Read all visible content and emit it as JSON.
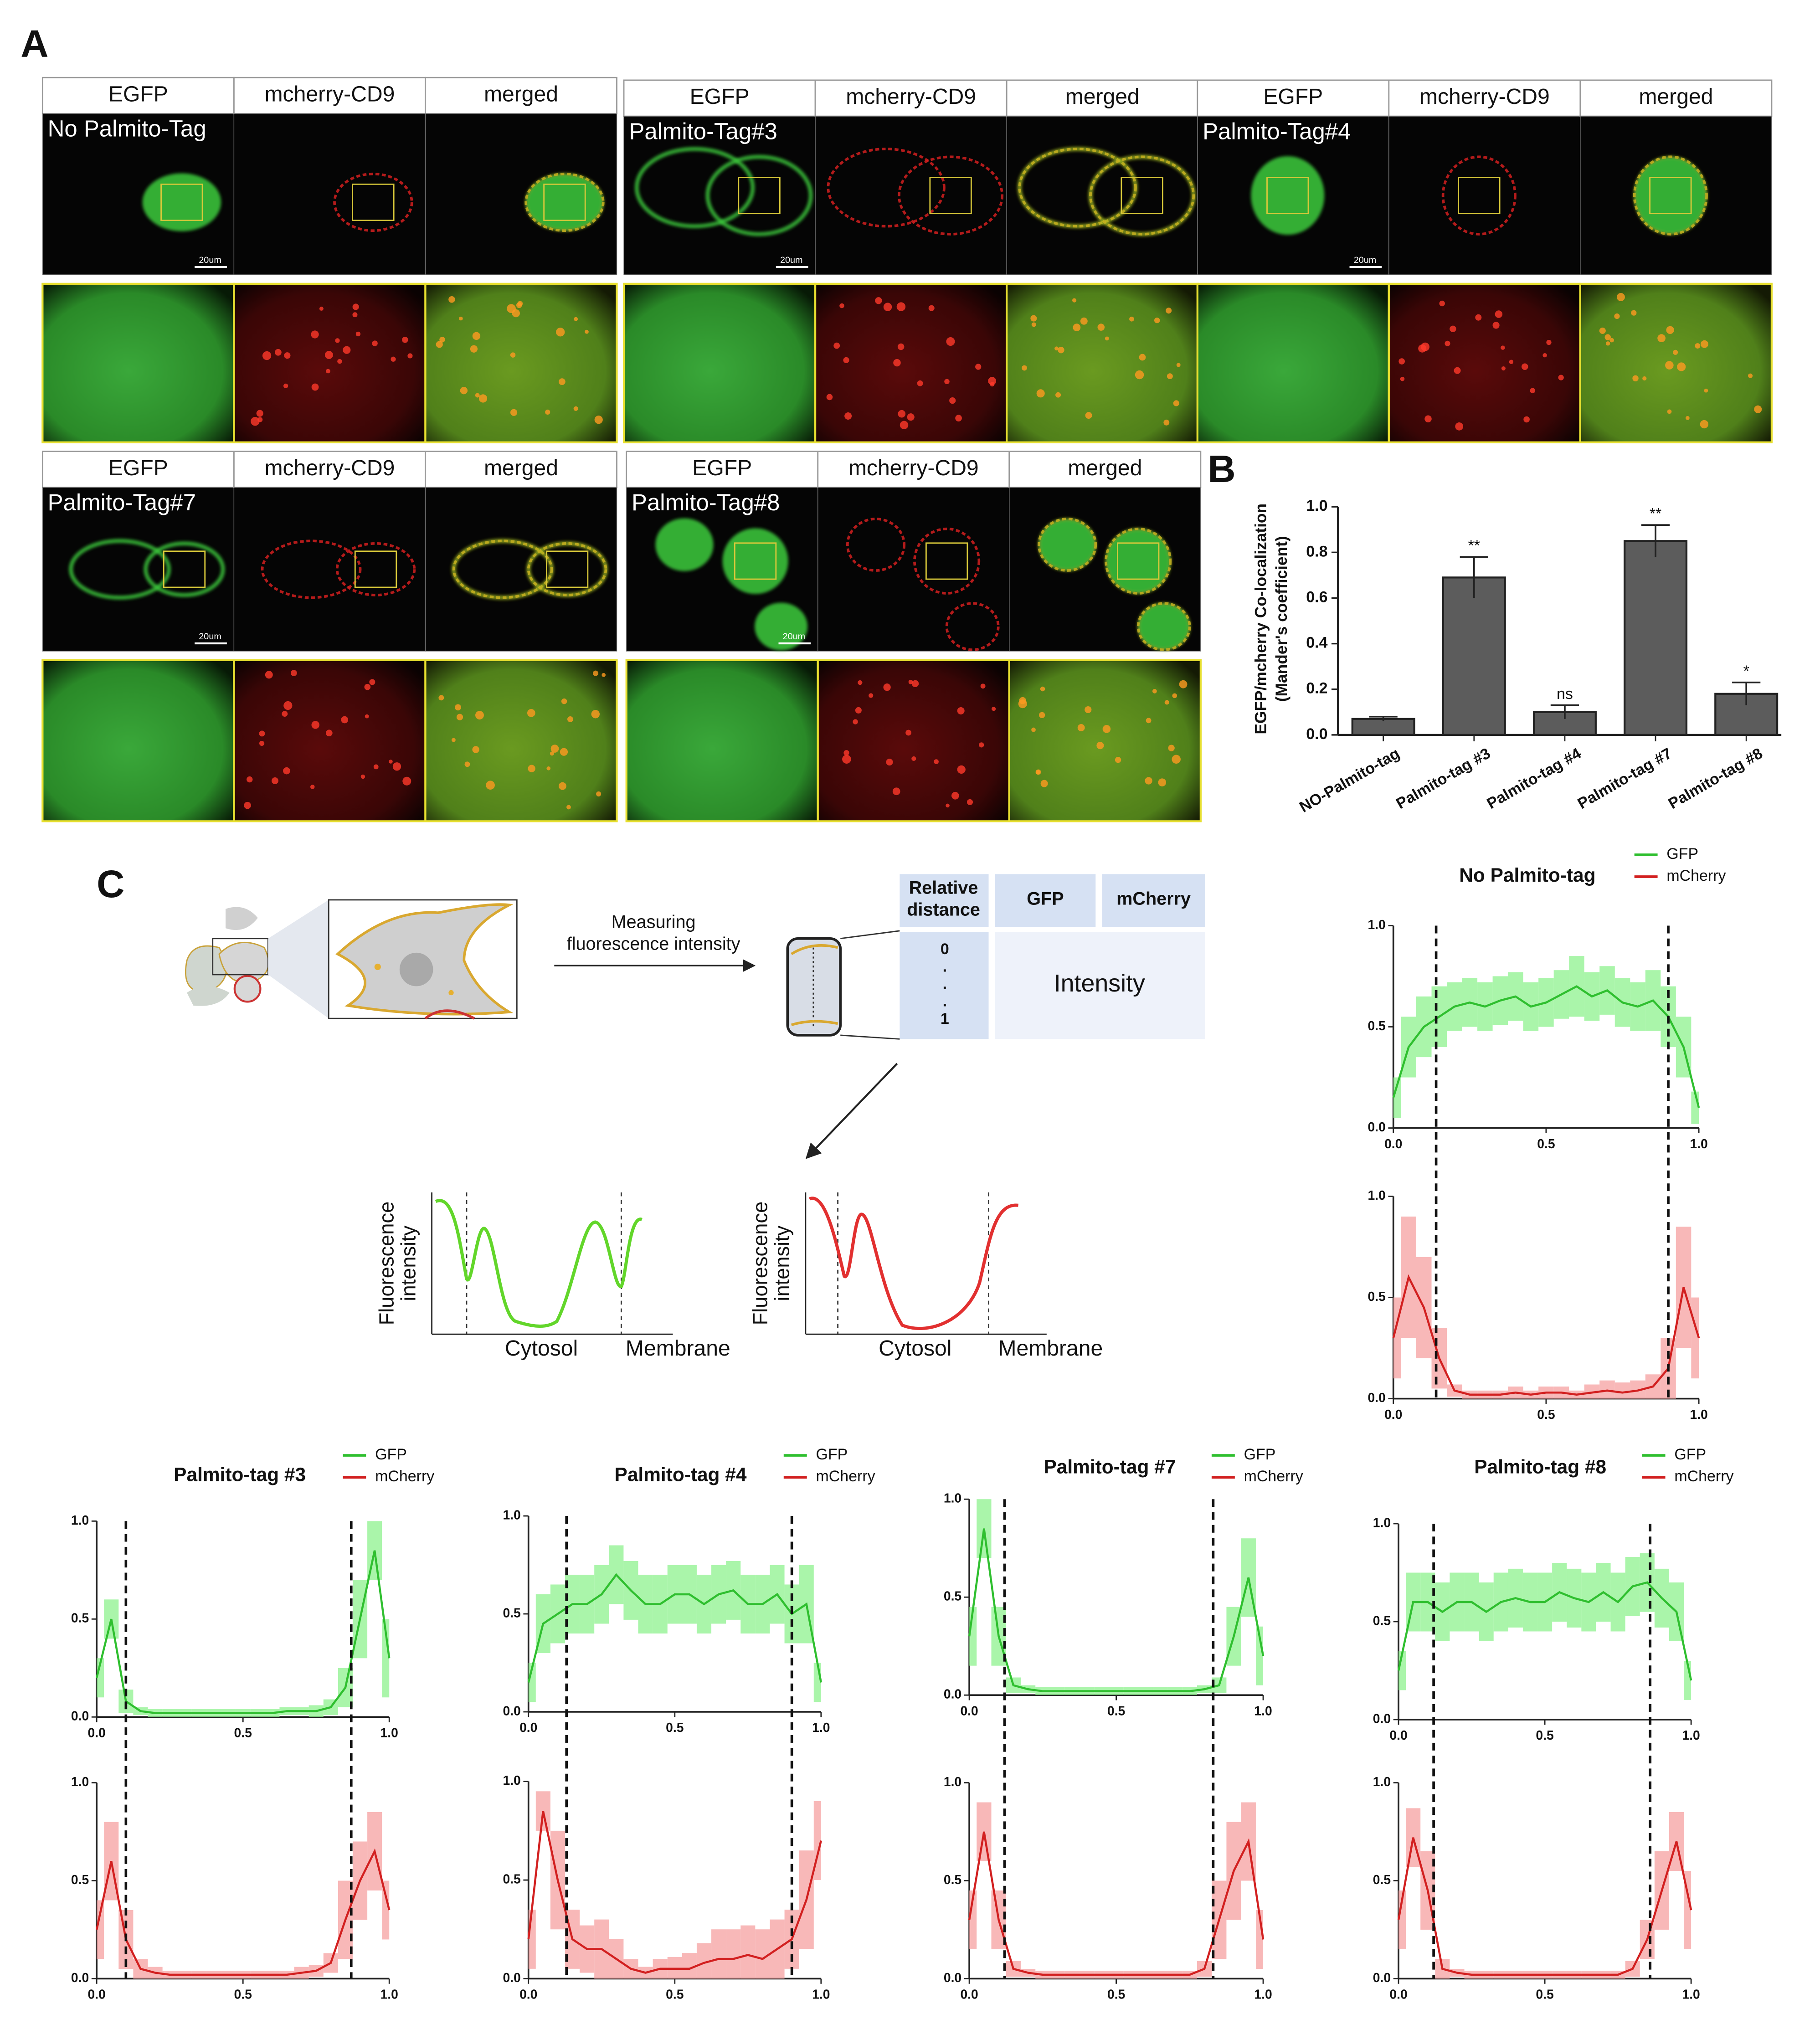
{
  "figure": {
    "panel_labels": [
      "A",
      "B",
      "C"
    ]
  },
  "microscopy": [
    {
      "label": "No Palmito-Tag",
      "channels": [
        "EGFP",
        "mcherry-CD9",
        "merged"
      ],
      "scale_bar": "20um"
    },
    {
      "label": "Palmito-Tag#3",
      "channels": [
        "EGFP",
        "mcherry-CD9",
        "merged"
      ],
      "scale_bar": "20um"
    },
    {
      "label": "Palmito-Tag#4",
      "channels": [
        "EGFP",
        "mcherry-CD9",
        "merged"
      ],
      "scale_bar": "20um"
    },
    {
      "label": "Palmito-Tag#7",
      "channels": [
        "EGFP",
        "mcherry-CD9",
        "merged"
      ],
      "scale_bar": "20um"
    },
    {
      "label": "Palmito-Tag#8",
      "channels": [
        "EGFP",
        "mcherry-CD9",
        "merged"
      ],
      "scale_bar": "20um"
    }
  ],
  "schematic": {
    "arrow_label": [
      "Measuring",
      "fluorescence intensity"
    ],
    "table_headers": [
      [
        "Relative",
        "distance"
      ],
      [
        "GFP"
      ],
      [
        "mCherry"
      ]
    ],
    "distance_labels": [
      "0",
      ".",
      ".",
      ".",
      "1"
    ],
    "cell_text": "Intensity",
    "sketch": {
      "y_label": [
        "Fluorescence",
        "intensity"
      ],
      "x_labels": [
        "Cytosol",
        "Membrane"
      ]
    }
  },
  "chart_data": [
    {
      "type": "bar",
      "y_label": [
        "EGFP/mcherry Co-localization",
        "(Mander's coefficient)"
      ],
      "categories": [
        "NO-Palmito-tag",
        "Palmito-tag #3",
        "Palmito-tag #4",
        "Palmito-tag #7",
        "Palmito-tag #8"
      ],
      "values": [
        0.07,
        0.69,
        0.1,
        0.85,
        0.18
      ],
      "errors": [
        0.01,
        0.09,
        0.03,
        0.07,
        0.05
      ],
      "color": "#5c5c5c",
      "annotations": [
        {
          "index": 1,
          "text": "**"
        },
        {
          "index": 2,
          "text": "ns"
        },
        {
          "index": 3,
          "text": "**"
        },
        {
          "index": 4,
          "text": "*"
        }
      ],
      "ylim": [
        0,
        1
      ],
      "yticks": [
        {
          "value": 0,
          "label": "0.0"
        },
        {
          "value": 0.2,
          "label": "0.2"
        },
        {
          "value": 0.4,
          "label": "0.4"
        },
        {
          "value": 0.6,
          "label": "0.6"
        },
        {
          "value": 0.8,
          "label": "0.8"
        },
        {
          "value": 1,
          "label": "1.0"
        }
      ]
    },
    {
      "type": "line",
      "title": "No Palmito-tag",
      "x": [
        0,
        0.05,
        0.1,
        0.15,
        0.2,
        0.25,
        0.3,
        0.35,
        0.4,
        0.45,
        0.5,
        0.55,
        0.6,
        0.65,
        0.7,
        0.75,
        0.8,
        0.85,
        0.9,
        0.95,
        1
      ],
      "series": [
        {
          "name": "GFP",
          "color": "#2fbf2f",
          "band_color": "#8ef28e",
          "values": [
            0.15,
            0.4,
            0.5,
            0.55,
            0.6,
            0.62,
            0.6,
            0.63,
            0.65,
            0.6,
            0.62,
            0.66,
            0.7,
            0.65,
            0.68,
            0.62,
            0.6,
            0.63,
            0.55,
            0.4,
            0.1
          ],
          "errors": [
            0.1,
            0.15,
            0.15,
            0.15,
            0.12,
            0.12,
            0.12,
            0.12,
            0.12,
            0.12,
            0.12,
            0.12,
            0.15,
            0.12,
            0.12,
            0.12,
            0.12,
            0.15,
            0.15,
            0.15,
            0.08
          ]
        },
        {
          "name": "mCherry",
          "color": "#d22020",
          "band_color": "#f6a0a0",
          "values": [
            0.3,
            0.6,
            0.45,
            0.2,
            0.04,
            0.02,
            0.02,
            0.02,
            0.03,
            0.02,
            0.03,
            0.03,
            0.02,
            0.03,
            0.04,
            0.03,
            0.04,
            0.06,
            0.15,
            0.55,
            0.3
          ],
          "errors": [
            0.2,
            0.3,
            0.25,
            0.15,
            0.03,
            0.02,
            0.02,
            0.02,
            0.03,
            0.02,
            0.03,
            0.03,
            0.02,
            0.04,
            0.05,
            0.05,
            0.05,
            0.06,
            0.15,
            0.3,
            0.2
          ]
        }
      ],
      "markers": [
        0.14,
        0.9
      ],
      "xlim": [
        0,
        1
      ],
      "ylim": [
        0,
        1
      ],
      "xticks": [
        {
          "value": 0,
          "label": "0.0"
        },
        {
          "value": 0.5,
          "label": "0.5"
        },
        {
          "value": 1,
          "label": "1.0"
        }
      ],
      "yticks": [
        {
          "value": 0,
          "label": "0.0"
        },
        {
          "value": 0.5,
          "label": "0.5"
        },
        {
          "value": 1,
          "label": "1.0"
        }
      ]
    },
    {
      "type": "line",
      "title": "Palmito-tag #3",
      "x": [
        0,
        0.05,
        0.1,
        0.15,
        0.2,
        0.25,
        0.3,
        0.35,
        0.4,
        0.45,
        0.5,
        0.55,
        0.6,
        0.65,
        0.7,
        0.75,
        0.8,
        0.85,
        0.9,
        0.95,
        1
      ],
      "series": [
        {
          "name": "GFP",
          "color": "#2fbf2f",
          "band_color": "#8ef28e",
          "values": [
            0.2,
            0.5,
            0.08,
            0.03,
            0.02,
            0.02,
            0.02,
            0.02,
            0.02,
            0.02,
            0.02,
            0.02,
            0.02,
            0.03,
            0.03,
            0.03,
            0.05,
            0.15,
            0.5,
            0.85,
            0.3
          ],
          "errors": [
            0.1,
            0.1,
            0.06,
            0.02,
            0.02,
            0.02,
            0.02,
            0.02,
            0.02,
            0.02,
            0.02,
            0.02,
            0.02,
            0.02,
            0.02,
            0.03,
            0.04,
            0.1,
            0.2,
            0.15,
            0.2
          ]
        },
        {
          "name": "mCherry",
          "color": "#d22020",
          "band_color": "#f6a0a0",
          "values": [
            0.25,
            0.6,
            0.2,
            0.05,
            0.03,
            0.02,
            0.02,
            0.02,
            0.02,
            0.02,
            0.02,
            0.02,
            0.02,
            0.02,
            0.03,
            0.04,
            0.08,
            0.3,
            0.5,
            0.65,
            0.35
          ],
          "errors": [
            0.15,
            0.2,
            0.15,
            0.05,
            0.03,
            0.02,
            0.02,
            0.02,
            0.02,
            0.02,
            0.02,
            0.02,
            0.02,
            0.02,
            0.03,
            0.03,
            0.05,
            0.2,
            0.2,
            0.2,
            0.15
          ]
        }
      ],
      "markers": [
        0.1,
        0.87
      ],
      "xlim": [
        0,
        1
      ],
      "ylim": [
        0,
        1
      ],
      "xticks": [
        {
          "value": 0,
          "label": "0.0"
        },
        {
          "value": 0.5,
          "label": "0.5"
        },
        {
          "value": 1,
          "label": "1.0"
        }
      ],
      "yticks": [
        {
          "value": 0,
          "label": "0.0"
        },
        {
          "value": 0.5,
          "label": "0.5"
        },
        {
          "value": 1,
          "label": "1.0"
        }
      ]
    },
    {
      "type": "line",
      "title": "Palmito-tag #4",
      "x": [
        0,
        0.05,
        0.1,
        0.15,
        0.2,
        0.25,
        0.3,
        0.35,
        0.4,
        0.45,
        0.5,
        0.55,
        0.6,
        0.65,
        0.7,
        0.75,
        0.8,
        0.85,
        0.9,
        0.95,
        1
      ],
      "series": [
        {
          "name": "GFP",
          "color": "#2fbf2f",
          "band_color": "#8ef28e",
          "values": [
            0.15,
            0.45,
            0.5,
            0.55,
            0.55,
            0.6,
            0.7,
            0.62,
            0.55,
            0.55,
            0.6,
            0.6,
            0.55,
            0.6,
            0.62,
            0.55,
            0.55,
            0.6,
            0.5,
            0.55,
            0.15
          ],
          "errors": [
            0.1,
            0.15,
            0.15,
            0.15,
            0.15,
            0.15,
            0.15,
            0.15,
            0.15,
            0.15,
            0.15,
            0.15,
            0.15,
            0.15,
            0.15,
            0.15,
            0.15,
            0.15,
            0.15,
            0.2,
            0.1
          ]
        },
        {
          "name": "mCherry",
          "color": "#d22020",
          "band_color": "#f6a0a0",
          "values": [
            0.2,
            0.85,
            0.5,
            0.2,
            0.15,
            0.15,
            0.1,
            0.05,
            0.03,
            0.05,
            0.05,
            0.05,
            0.08,
            0.1,
            0.1,
            0.12,
            0.1,
            0.15,
            0.2,
            0.4,
            0.7
          ],
          "errors": [
            0.15,
            0.1,
            0.25,
            0.15,
            0.12,
            0.15,
            0.1,
            0.05,
            0.03,
            0.05,
            0.06,
            0.08,
            0.1,
            0.15,
            0.15,
            0.15,
            0.15,
            0.15,
            0.15,
            0.25,
            0.2
          ]
        }
      ],
      "markers": [
        0.13,
        0.9
      ],
      "xlim": [
        0,
        1
      ],
      "ylim": [
        0,
        1
      ],
      "xticks": [
        {
          "value": 0,
          "label": "0.0"
        },
        {
          "value": 0.5,
          "label": "0.5"
        },
        {
          "value": 1,
          "label": "1.0"
        }
      ],
      "yticks": [
        {
          "value": 0,
          "label": "0.0"
        },
        {
          "value": 0.5,
          "label": "0.5"
        },
        {
          "value": 1,
          "label": "1.0"
        }
      ]
    },
    {
      "type": "line",
      "title": "Palmito-tag #7",
      "x": [
        0,
        0.05,
        0.1,
        0.15,
        0.2,
        0.25,
        0.3,
        0.35,
        0.4,
        0.45,
        0.5,
        0.55,
        0.6,
        0.65,
        0.7,
        0.75,
        0.8,
        0.85,
        0.9,
        0.95,
        1
      ],
      "series": [
        {
          "name": "GFP",
          "color": "#2fbf2f",
          "band_color": "#8ef28e",
          "values": [
            0.3,
            0.85,
            0.3,
            0.05,
            0.03,
            0.02,
            0.02,
            0.02,
            0.02,
            0.02,
            0.02,
            0.02,
            0.02,
            0.02,
            0.02,
            0.02,
            0.03,
            0.05,
            0.3,
            0.6,
            0.2
          ],
          "errors": [
            0.15,
            0.15,
            0.15,
            0.04,
            0.02,
            0.02,
            0.02,
            0.02,
            0.02,
            0.02,
            0.02,
            0.02,
            0.02,
            0.02,
            0.02,
            0.02,
            0.02,
            0.04,
            0.15,
            0.2,
            0.15
          ]
        },
        {
          "name": "mCherry",
          "color": "#d22020",
          "band_color": "#f6a0a0",
          "values": [
            0.3,
            0.75,
            0.3,
            0.05,
            0.03,
            0.02,
            0.02,
            0.02,
            0.02,
            0.02,
            0.02,
            0.02,
            0.02,
            0.02,
            0.02,
            0.02,
            0.05,
            0.3,
            0.55,
            0.7,
            0.2
          ],
          "errors": [
            0.15,
            0.15,
            0.15,
            0.04,
            0.02,
            0.02,
            0.02,
            0.02,
            0.02,
            0.02,
            0.02,
            0.02,
            0.02,
            0.02,
            0.02,
            0.02,
            0.04,
            0.2,
            0.25,
            0.2,
            0.15
          ]
        }
      ],
      "markers": [
        0.12,
        0.83
      ],
      "xlim": [
        0,
        1
      ],
      "ylim": [
        0,
        1
      ],
      "xticks": [
        {
          "value": 0,
          "label": "0.0"
        },
        {
          "value": 0.5,
          "label": "0.5"
        },
        {
          "value": 1,
          "label": "1.0"
        }
      ],
      "yticks": [
        {
          "value": 0,
          "label": "0.0"
        },
        {
          "value": 0.5,
          "label": "0.5"
        },
        {
          "value": 1,
          "label": "1.0"
        }
      ]
    },
    {
      "type": "line",
      "title": "Palmito-tag #8",
      "x": [
        0,
        0.05,
        0.1,
        0.15,
        0.2,
        0.25,
        0.3,
        0.35,
        0.4,
        0.45,
        0.5,
        0.55,
        0.6,
        0.65,
        0.7,
        0.75,
        0.8,
        0.85,
        0.9,
        0.95,
        1
      ],
      "series": [
        {
          "name": "GFP",
          "color": "#2fbf2f",
          "band_color": "#8ef28e",
          "values": [
            0.25,
            0.6,
            0.6,
            0.55,
            0.6,
            0.6,
            0.55,
            0.6,
            0.62,
            0.6,
            0.6,
            0.65,
            0.62,
            0.6,
            0.65,
            0.6,
            0.68,
            0.7,
            0.62,
            0.55,
            0.2
          ],
          "errors": [
            0.1,
            0.15,
            0.15,
            0.15,
            0.15,
            0.15,
            0.15,
            0.15,
            0.15,
            0.15,
            0.15,
            0.15,
            0.15,
            0.15,
            0.15,
            0.15,
            0.15,
            0.15,
            0.15,
            0.15,
            0.1
          ]
        },
        {
          "name": "mCherry",
          "color": "#d22020",
          "band_color": "#f6a0a0",
          "values": [
            0.3,
            0.72,
            0.45,
            0.05,
            0.03,
            0.02,
            0.02,
            0.02,
            0.02,
            0.02,
            0.02,
            0.02,
            0.02,
            0.02,
            0.02,
            0.02,
            0.05,
            0.2,
            0.45,
            0.7,
            0.35
          ],
          "errors": [
            0.15,
            0.15,
            0.2,
            0.05,
            0.02,
            0.02,
            0.02,
            0.02,
            0.02,
            0.02,
            0.02,
            0.02,
            0.02,
            0.02,
            0.02,
            0.02,
            0.04,
            0.1,
            0.2,
            0.15,
            0.2
          ]
        }
      ],
      "markers": [
        0.12,
        0.86
      ],
      "xlim": [
        0,
        1
      ],
      "ylim": [
        0,
        1
      ],
      "xticks": [
        {
          "value": 0,
          "label": "0.0"
        },
        {
          "value": 0.5,
          "label": "0.5"
        },
        {
          "value": 1,
          "label": "1.0"
        }
      ],
      "yticks": [
        {
          "value": 0,
          "label": "0.0"
        },
        {
          "value": 0.5,
          "label": "0.5"
        },
        {
          "value": 1,
          "label": "1.0"
        }
      ]
    }
  ]
}
